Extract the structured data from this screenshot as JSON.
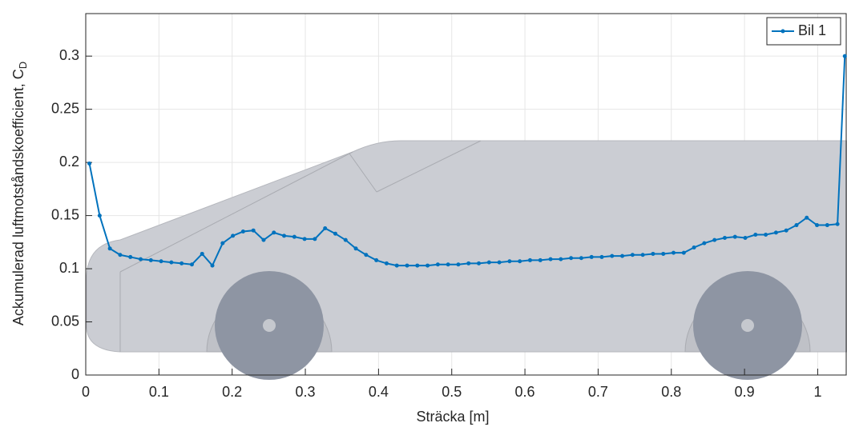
{
  "chart_data": {
    "type": "line",
    "x_label": "Sträcka [m]",
    "y_label": "Ackumulerad luftmotståndskoefficient, C",
    "y_label_subscript": "D",
    "x": [
      0.005,
      0.019,
      0.033,
      0.047,
      0.061,
      0.075,
      0.089,
      0.103,
      0.117,
      0.131,
      0.145,
      0.159,
      0.173,
      0.187,
      0.201,
      0.215,
      0.229,
      0.243,
      0.257,
      0.271,
      0.285,
      0.299,
      0.313,
      0.327,
      0.341,
      0.355,
      0.369,
      0.383,
      0.397,
      0.411,
      0.425,
      0.439,
      0.453,
      0.467,
      0.481,
      0.495,
      0.509,
      0.523,
      0.537,
      0.551,
      0.565,
      0.579,
      0.593,
      0.607,
      0.621,
      0.635,
      0.649,
      0.663,
      0.677,
      0.691,
      0.705,
      0.719,
      0.733,
      0.747,
      0.761,
      0.775,
      0.789,
      0.803,
      0.817,
      0.831,
      0.845,
      0.859,
      0.873,
      0.887,
      0.901,
      0.915,
      0.929,
      0.943,
      0.957,
      0.971,
      0.985,
      0.999,
      1.013,
      1.027,
      1.037
    ],
    "series": [
      {
        "name": "Bil 1",
        "color": "#0072bd",
        "values": [
          0.199,
          0.15,
          0.119,
          0.113,
          0.111,
          0.109,
          0.108,
          0.107,
          0.106,
          0.105,
          0.104,
          0.114,
          0.103,
          0.124,
          0.131,
          0.135,
          0.136,
          0.127,
          0.134,
          0.131,
          0.13,
          0.128,
          0.128,
          0.138,
          0.133,
          0.127,
          0.119,
          0.113,
          0.108,
          0.105,
          0.103,
          0.103,
          0.103,
          0.103,
          0.104,
          0.104,
          0.104,
          0.105,
          0.105,
          0.106,
          0.106,
          0.107,
          0.107,
          0.108,
          0.108,
          0.109,
          0.109,
          0.11,
          0.11,
          0.111,
          0.111,
          0.112,
          0.112,
          0.113,
          0.113,
          0.114,
          0.114,
          0.115,
          0.115,
          0.12,
          0.124,
          0.127,
          0.129,
          0.13,
          0.129,
          0.132,
          0.132,
          0.134,
          0.136,
          0.141,
          0.148,
          0.141,
          0.141,
          0.142,
          0.3
        ]
      }
    ],
    "xlim": [
      0,
      1.04
    ],
    "ylim": [
      0,
      0.34
    ],
    "xticks": [
      0,
      0.1,
      0.2,
      0.3,
      0.4,
      0.5,
      0.6,
      0.7,
      0.8,
      0.9,
      1
    ],
    "yticks": [
      0,
      0.05,
      0.1,
      0.15,
      0.2,
      0.25,
      0.3
    ],
    "grid": true,
    "legend": "upper right"
  }
}
